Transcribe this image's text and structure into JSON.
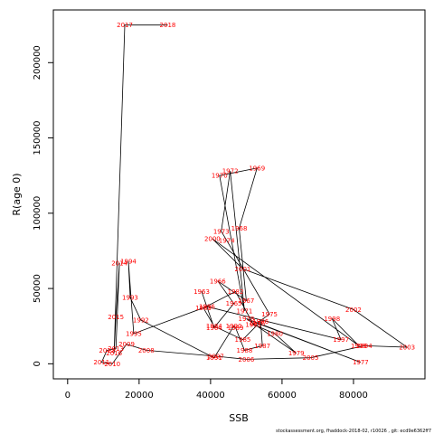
{
  "chart_data": {
    "type": "line",
    "xlabel": "SSB",
    "ylabel": "R(age 0)",
    "xlim": [
      -4000,
      100000
    ],
    "ylim": [
      -10000,
      235000
    ],
    "x_ticks": [
      0,
      20000,
      40000,
      60000,
      80000
    ],
    "x_tick_labels": [
      "0",
      "20000",
      "40000",
      "60000",
      "80000"
    ],
    "y_ticks": [
      0,
      50000,
      100000,
      150000,
      200000
    ],
    "y_tick_labels": [
      "0",
      "50000",
      "100000",
      "150000",
      "200000"
    ],
    "grid": false,
    "label_color": "#ff0000",
    "line_color": "#000000",
    "points": [
      {
        "year": "1963",
        "x": 37500,
        "y": 48000
      },
      {
        "year": "1964",
        "x": 41000,
        "y": 24000
      },
      {
        "year": "1965",
        "x": 46500,
        "y": 40000
      },
      {
        "year": "1966",
        "x": 42000,
        "y": 55000
      },
      {
        "year": "1967",
        "x": 50000,
        "y": 42000
      },
      {
        "year": "1968",
        "x": 48000,
        "y": 90000
      },
      {
        "year": "1969",
        "x": 53000,
        "y": 130000
      },
      {
        "year": "1970",
        "x": 42500,
        "y": 125000
      },
      {
        "year": "1971",
        "x": 49500,
        "y": 35000
      },
      {
        "year": "1972",
        "x": 45500,
        "y": 128000
      },
      {
        "year": "1973",
        "x": 43000,
        "y": 88000
      },
      {
        "year": "1974",
        "x": 44500,
        "y": 82000
      },
      {
        "year": "1975",
        "x": 56500,
        "y": 33000
      },
      {
        "year": "1976",
        "x": 53000,
        "y": 27000
      },
      {
        "year": "1977",
        "x": 82000,
        "y": 1000
      },
      {
        "year": "1978",
        "x": 50000,
        "y": 30000
      },
      {
        "year": "1979",
        "x": 64000,
        "y": 7000
      },
      {
        "year": "1980",
        "x": 58000,
        "y": 20000
      },
      {
        "year": "1981",
        "x": 52000,
        "y": 26000
      },
      {
        "year": "1982",
        "x": 47000,
        "y": 48000
      },
      {
        "year": "1983",
        "x": 38000,
        "y": 37000
      },
      {
        "year": "1984",
        "x": 41000,
        "y": 25000
      },
      {
        "year": "1985",
        "x": 49000,
        "y": 16000
      },
      {
        "year": "1986",
        "x": 54000,
        "y": 28000
      },
      {
        "year": "1987",
        "x": 54500,
        "y": 12000
      },
      {
        "year": "1988",
        "x": 49500,
        "y": 9000
      },
      {
        "year": "1989",
        "x": 47000,
        "y": 24000
      },
      {
        "year": "1990",
        "x": 46500,
        "y": 25000
      },
      {
        "year": "1991",
        "x": 41000,
        "y": 4000
      },
      {
        "year": "1992",
        "x": 20500,
        "y": 29000
      },
      {
        "year": "1993",
        "x": 17500,
        "y": 44000
      },
      {
        "year": "1994",
        "x": 17000,
        "y": 68000
      },
      {
        "year": "1995",
        "x": 18500,
        "y": 20000
      },
      {
        "year": "1996",
        "x": 39000,
        "y": 38000
      },
      {
        "year": "1997",
        "x": 76500,
        "y": 16000
      },
      {
        "year": "1998",
        "x": 74000,
        "y": 30000
      },
      {
        "year": "1999",
        "x": 81500,
        "y": 12000
      },
      {
        "year": "2000",
        "x": 40500,
        "y": 83000
      },
      {
        "year": "2001",
        "x": 49000,
        "y": 63000
      },
      {
        "year": "2002",
        "x": 80000,
        "y": 36000
      },
      {
        "year": "2003",
        "x": 95000,
        "y": 11000
      },
      {
        "year": "2004",
        "x": 83000,
        "y": 12000
      },
      {
        "year": "2005",
        "x": 68000,
        "y": 4000
      },
      {
        "year": "2006",
        "x": 50000,
        "y": 3000
      },
      {
        "year": "2007",
        "x": 41500,
        "y": 5000
      },
      {
        "year": "2008",
        "x": 22000,
        "y": 9000
      },
      {
        "year": "2009",
        "x": 16500,
        "y": 13000
      },
      {
        "year": "2010",
        "x": 12500,
        "y": 0
      },
      {
        "year": "2011",
        "x": 9500,
        "y": 1000
      },
      {
        "year": "2012",
        "x": 11000,
        "y": 9000
      },
      {
        "year": "2013",
        "x": 13500,
        "y": 10000
      },
      {
        "year": "2014",
        "x": 14500,
        "y": 67000
      },
      {
        "year": "2015",
        "x": 13500,
        "y": 31000
      },
      {
        "year": "2016",
        "x": 13000,
        "y": 7000
      },
      {
        "year": "2017",
        "x": 16000,
        "y": 225000
      },
      {
        "year": "2018",
        "x": 28000,
        "y": 225000
      }
    ]
  },
  "footer_text": "stockassessment.org, fhaddock-2018-02, r10026 , git: ecd9e6362ff7"
}
